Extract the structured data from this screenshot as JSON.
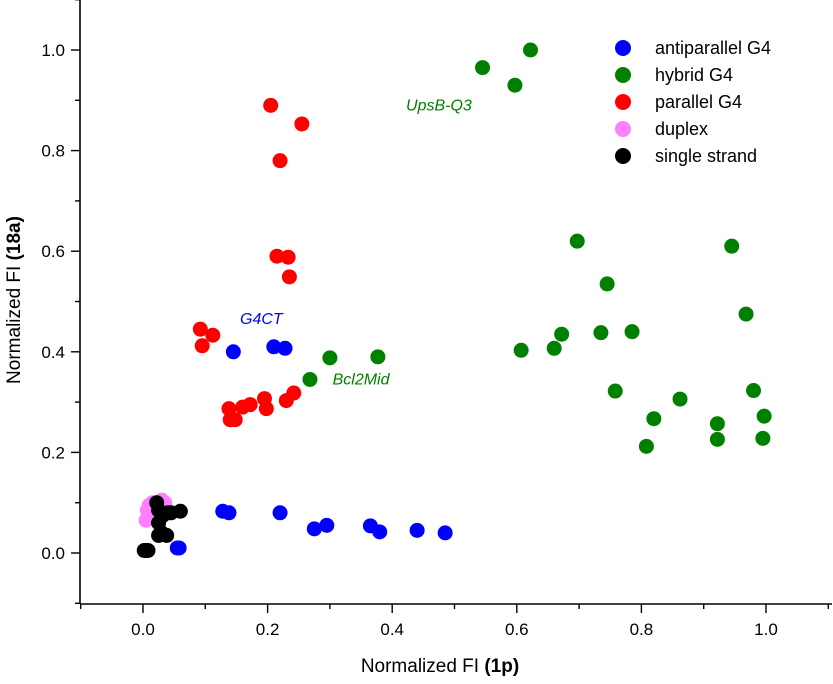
{
  "chart_data": {
    "type": "scatter",
    "title": "",
    "xlabel_prefix": "Normalized FI ",
    "xlabel_bold": "(1p)",
    "ylabel_prefix": "Normalized FI ",
    "ylabel_bold": "(18a)",
    "xlim": [
      -0.1,
      1.1
    ],
    "ylim": [
      -0.1,
      1.1
    ],
    "xticks": [
      0.0,
      0.2,
      0.4,
      0.6,
      0.8,
      1.0
    ],
    "yticks": [
      0.0,
      0.2,
      0.4,
      0.6,
      0.8,
      1.0
    ],
    "xtick_labels": [
      "0.0",
      "0.2",
      "0.4",
      "0.6",
      "0.8",
      "1.0"
    ],
    "ytick_labels": [
      "0.0",
      "0.2",
      "0.4",
      "0.6",
      "0.8",
      "1.0"
    ],
    "legend_position": "top-right",
    "series": [
      {
        "name": "antiparallel G4",
        "color": "#0000ff",
        "points": [
          [
            0.145,
            0.4
          ],
          [
            0.21,
            0.41
          ],
          [
            0.228,
            0.407
          ],
          [
            0.128,
            0.083
          ],
          [
            0.138,
            0.08
          ],
          [
            0.22,
            0.08
          ],
          [
            0.055,
            0.01
          ],
          [
            0.058,
            0.01
          ],
          [
            0.275,
            0.048
          ],
          [
            0.295,
            0.055
          ],
          [
            0.365,
            0.054
          ],
          [
            0.38,
            0.042
          ],
          [
            0.44,
            0.045
          ],
          [
            0.485,
            0.04
          ]
        ]
      },
      {
        "name": "hybrid G4",
        "color": "#008000",
        "points": [
          [
            0.545,
            0.965
          ],
          [
            0.597,
            0.93
          ],
          [
            0.622,
            1.0
          ],
          [
            0.268,
            0.345
          ],
          [
            0.3,
            0.388
          ],
          [
            0.377,
            0.39
          ],
          [
            0.607,
            0.403
          ],
          [
            0.66,
            0.407
          ],
          [
            0.672,
            0.435
          ],
          [
            0.697,
            0.62
          ],
          [
            0.735,
            0.438
          ],
          [
            0.745,
            0.535
          ],
          [
            0.758,
            0.322
          ],
          [
            0.785,
            0.44
          ],
          [
            0.808,
            0.212
          ],
          [
            0.82,
            0.267
          ],
          [
            0.862,
            0.306
          ],
          [
            0.922,
            0.257
          ],
          [
            0.922,
            0.226
          ],
          [
            0.945,
            0.61
          ],
          [
            0.968,
            0.475
          ],
          [
            0.98,
            0.323
          ],
          [
            0.995,
            0.228
          ],
          [
            0.997,
            0.272
          ]
        ]
      },
      {
        "name": "parallel G4",
        "color": "#ff0000",
        "points": [
          [
            0.205,
            0.89
          ],
          [
            0.255,
            0.853
          ],
          [
            0.22,
            0.78
          ],
          [
            0.215,
            0.59
          ],
          [
            0.233,
            0.588
          ],
          [
            0.235,
            0.549
          ],
          [
            0.092,
            0.445
          ],
          [
            0.095,
            0.412
          ],
          [
            0.112,
            0.433
          ],
          [
            0.138,
            0.287
          ],
          [
            0.14,
            0.265
          ],
          [
            0.148,
            0.265
          ],
          [
            0.16,
            0.29
          ],
          [
            0.172,
            0.295
          ],
          [
            0.195,
            0.307
          ],
          [
            0.198,
            0.287
          ],
          [
            0.23,
            0.303
          ],
          [
            0.242,
            0.318
          ]
        ]
      },
      {
        "name": "duplex",
        "color": "#ff80ff",
        "points": [
          [
            0.005,
            0.065
          ],
          [
            0.007,
            0.085
          ],
          [
            0.01,
            0.095
          ],
          [
            0.012,
            0.075
          ],
          [
            0.015,
            0.1
          ],
          [
            0.018,
            0.088
          ],
          [
            0.02,
            0.07
          ],
          [
            0.022,
            0.1
          ],
          [
            0.025,
            0.09
          ],
          [
            0.028,
            0.08
          ],
          [
            0.03,
            0.105
          ],
          [
            0.032,
            0.095
          ],
          [
            0.035,
            0.1
          ]
        ]
      },
      {
        "name": "single strand",
        "color": "#000000",
        "points": [
          [
            0.002,
            0.005
          ],
          [
            0.005,
            0.005
          ],
          [
            0.008,
            0.005
          ],
          [
            0.022,
            0.1
          ],
          [
            0.025,
            0.085
          ],
          [
            0.025,
            0.06
          ],
          [
            0.03,
            0.04
          ],
          [
            0.032,
            0.075
          ],
          [
            0.038,
            0.035
          ],
          [
            0.04,
            0.08
          ],
          [
            0.045,
            0.08
          ],
          [
            0.06,
            0.083
          ],
          [
            0.025,
            0.035
          ]
        ]
      }
    ],
    "annotations": [
      {
        "text": "UpsB-Q3",
        "x": 0.475,
        "y": 0.88,
        "color": "#008000"
      },
      {
        "text": "G4CT",
        "x": 0.19,
        "y": 0.455,
        "color": "#0000ff"
      },
      {
        "text": "Bcl2Mid",
        "x": 0.35,
        "y": 0.335,
        "color": "#008000"
      }
    ]
  }
}
